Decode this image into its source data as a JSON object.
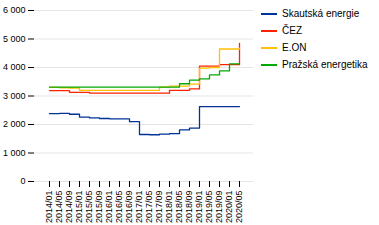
{
  "chart_data": {
    "type": "step",
    "categories": [
      "2014/01",
      "2014/05",
      "2014/09",
      "2015/01",
      "2015/05",
      "2015/09",
      "2016/01",
      "2016/05",
      "2016/09",
      "2017/01",
      "2017/05",
      "2017/09",
      "2018/01",
      "2018/05",
      "2018/09",
      "2019/01",
      "2019/05",
      "2019/09",
      "2020/01",
      "2020/05"
    ],
    "series": [
      {
        "name": "Skautská energie",
        "color": "#003399",
        "values": [
          2380,
          2390,
          2360,
          2260,
          2230,
          2210,
          2200,
          2200,
          2100,
          1650,
          1640,
          1660,
          1680,
          1810,
          1870,
          2630,
          2630,
          2630,
          2630,
          2630
        ]
      },
      {
        "name": "ČEZ",
        "color": "#ff2200",
        "values": [
          3190,
          3190,
          3130,
          3130,
          3100,
          3100,
          3100,
          3100,
          3100,
          3100,
          3100,
          3100,
          3200,
          3200,
          3250,
          4050,
          4050,
          4100,
          4100,
          4850
        ]
      },
      {
        "name": "E.ON",
        "color": "#ffc000",
        "values": [
          3300,
          3290,
          3280,
          3200,
          3200,
          3200,
          3200,
          3200,
          3200,
          3200,
          3200,
          3310,
          3350,
          3350,
          3420,
          3980,
          4000,
          4650,
          4650,
          4680
        ]
      },
      {
        "name": "Pražská energetika",
        "color": "#00aa00",
        "values": [
          3310,
          3310,
          3310,
          3310,
          3310,
          3310,
          3310,
          3310,
          3310,
          3310,
          3310,
          3310,
          3310,
          3430,
          3560,
          3600,
          3740,
          3880,
          4130,
          4130
        ]
      }
    ],
    "ylim": [
      0,
      6000
    ],
    "yticks": [
      0,
      {
        "value": 1000,
        "label": "1 000"
      },
      {
        "value": 2000,
        "label": "2 000"
      },
      {
        "value": 3000,
        "label": "3 000"
      },
      {
        "value": 4000,
        "label": "4 000"
      },
      {
        "value": 5000,
        "label": "5 000"
      },
      {
        "value": 6000,
        "label": "6 000"
      }
    ],
    "grid": true,
    "legend": "right"
  }
}
